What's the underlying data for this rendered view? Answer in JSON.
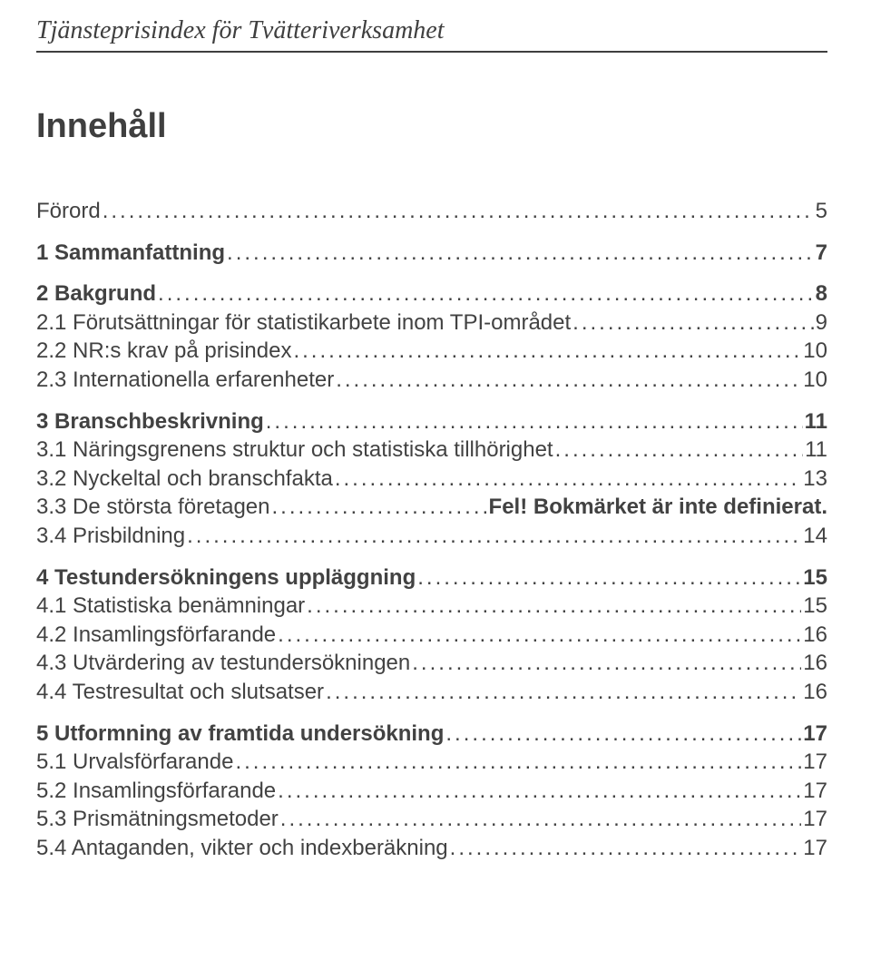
{
  "running_title": "Tjänsteprisindex för Tvätteriverksamhet",
  "toc_heading": "Innehåll",
  "groups": [
    {
      "rows": [
        {
          "label": "Förord",
          "page": "5",
          "bold": false
        }
      ]
    },
    {
      "rows": [
        {
          "label": "1 Sammanfattning",
          "page": "7",
          "bold": true
        }
      ]
    },
    {
      "rows": [
        {
          "label": "2 Bakgrund",
          "page": "8",
          "bold": true
        },
        {
          "label": "2.1 Förutsättningar för statistikarbete inom TPI-området",
          "page": "9",
          "bold": false
        },
        {
          "label": "2.2 NR:s krav på prisindex",
          "page": "10",
          "bold": false
        },
        {
          "label": "2.3 Internationella erfarenheter",
          "page": "10",
          "bold": false
        }
      ]
    },
    {
      "rows": [
        {
          "label": "3 Branschbeskrivning",
          "page": "11",
          "bold": true
        },
        {
          "label": "3.1 Näringsgrenens struktur och statistiska tillhörighet",
          "page": "11",
          "bold": false
        },
        {
          "label": "3.2 Nyckeltal och branschfakta",
          "page": "13",
          "bold": false
        },
        {
          "label": "3.3 De största företagen",
          "tail": "Fel! Bokmärket är inte definierat.",
          "bold": false
        },
        {
          "label": "3.4 Prisbildning",
          "page": "14",
          "bold": false
        }
      ]
    },
    {
      "rows": [
        {
          "label": "4 Testundersökningens uppläggning",
          "page": "15",
          "bold": true
        },
        {
          "label": "4.1 Statistiska benämningar",
          "page": "15",
          "bold": false
        },
        {
          "label": "4.2 Insamlingsförfarande",
          "page": "16",
          "bold": false
        },
        {
          "label": "4.3 Utvärdering av testundersökningen",
          "page": "16",
          "bold": false
        },
        {
          "label": "4.4 Testresultat och slutsatser",
          "page": "16",
          "bold": false
        }
      ]
    },
    {
      "rows": [
        {
          "label": "5 Utformning av framtida undersökning",
          "page": "17",
          "bold": true
        },
        {
          "label": "5.1 Urvalsförfarande",
          "page": "17",
          "bold": false
        },
        {
          "label": "5.2 Insamlingsförfarande",
          "page": "17",
          "bold": false
        },
        {
          "label": "5.3 Prismätningsmetoder",
          "page": "17",
          "bold": false
        },
        {
          "label": "5.4 Antaganden, vikter och indexberäkning",
          "page": "17",
          "bold": false
        }
      ]
    }
  ]
}
